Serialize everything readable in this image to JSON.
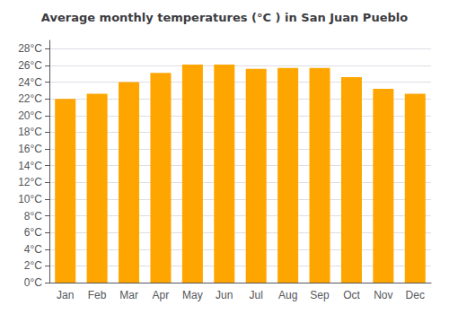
{
  "chart_data": {
    "type": "bar",
    "title": "Average monthly temperatures (°C ) in San Juan Pueblo",
    "categories": [
      "Jan",
      "Feb",
      "Mar",
      "Apr",
      "May",
      "Jun",
      "Jul",
      "Aug",
      "Sep",
      "Oct",
      "Nov",
      "Dec"
    ],
    "values": [
      22.0,
      22.6,
      24.0,
      25.1,
      26.1,
      26.1,
      25.6,
      25.7,
      25.7,
      24.6,
      23.2,
      22.6
    ],
    "color": "#FFA500",
    "ylim": [
      0,
      29
    ],
    "yticks": [
      {
        "value": 0,
        "label": "0°C"
      },
      {
        "value": 2,
        "label": "2°C"
      },
      {
        "value": 4,
        "label": "4°C"
      },
      {
        "value": 6,
        "label": "6°C"
      },
      {
        "value": 8,
        "label": "8°C"
      },
      {
        "value": 10,
        "label": "10°C"
      },
      {
        "value": 12,
        "label": "12°C"
      },
      {
        "value": 14,
        "label": "14°C"
      },
      {
        "value": 16,
        "label": "16°C"
      },
      {
        "value": 18,
        "label": "18°C"
      },
      {
        "value": 20,
        "label": "20°C"
      },
      {
        "value": 22,
        "label": "22°C"
      },
      {
        "value": 24,
        "label": "24°C"
      },
      {
        "value": 26,
        "label": "26°C"
      },
      {
        "value": 28,
        "label": "28°C"
      }
    ],
    "grid": true
  }
}
